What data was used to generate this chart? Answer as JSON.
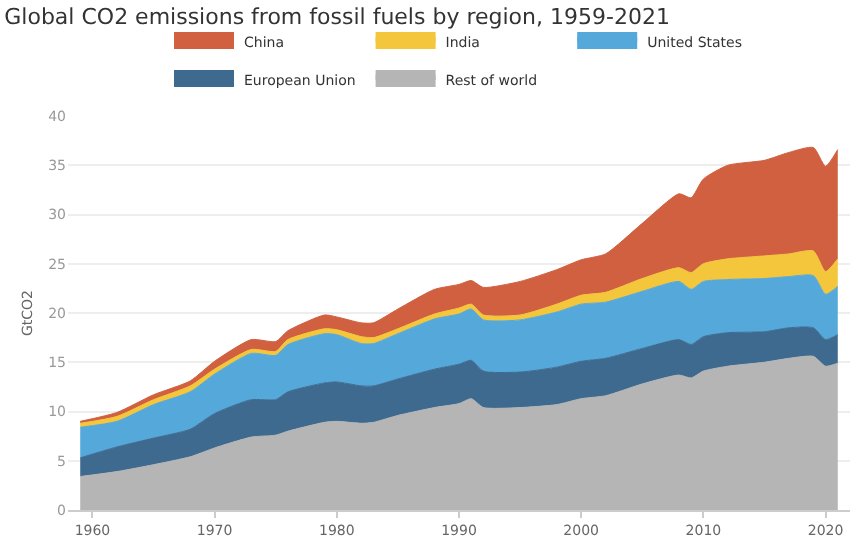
{
  "chart_data": {
    "type": "area",
    "stacked": true,
    "title": "Global CO2 emissions from fossil fuels by region, 1959-2021",
    "ylabel": "GtCO2",
    "x": [
      1959,
      1962,
      1965,
      1968,
      1970,
      1973,
      1975,
      1976,
      1979,
      1980,
      1982,
      1983,
      1985,
      1988,
      1990,
      1991,
      1992,
      1995,
      1998,
      2000,
      2002,
      2005,
      2008,
      2009,
      2010,
      2012,
      2015,
      2017,
      2019,
      2020,
      2021
    ],
    "series": [
      {
        "name": "Rest of world",
        "color": "#b5b5b5",
        "values": [
          3.4,
          3.9,
          4.6,
          5.4,
          6.3,
          7.4,
          7.6,
          8.0,
          8.9,
          9.0,
          8.8,
          8.9,
          9.6,
          10.4,
          10.8,
          11.3,
          10.4,
          10.4,
          10.7,
          11.3,
          11.6,
          12.8,
          13.7,
          13.4,
          14.1,
          14.6,
          15.0,
          15.4,
          15.6,
          14.6,
          14.9
        ]
      },
      {
        "name": "European Union",
        "color": "#3f6a8f",
        "values": [
          1.9,
          2.5,
          2.7,
          2.8,
          3.5,
          3.8,
          3.6,
          4.0,
          4.0,
          4.0,
          3.8,
          3.7,
          3.7,
          3.9,
          4.0,
          3.9,
          3.7,
          3.6,
          3.8,
          3.8,
          3.8,
          3.6,
          3.6,
          3.4,
          3.5,
          3.4,
          3.1,
          3.1,
          2.9,
          2.7,
          2.9
        ]
      },
      {
        "name": "United States",
        "color": "#55a8da",
        "values": [
          3.1,
          2.6,
          3.4,
          3.8,
          4.0,
          4.7,
          4.5,
          4.8,
          5.0,
          4.8,
          4.3,
          4.3,
          4.6,
          5.1,
          5.1,
          5.2,
          5.2,
          5.3,
          5.6,
          5.8,
          5.7,
          5.8,
          5.9,
          5.6,
          5.6,
          5.4,
          5.4,
          5.2,
          5.3,
          4.6,
          4.9
        ]
      },
      {
        "name": "India",
        "color": "#f3c63c",
        "values": [
          0.4,
          0.5,
          0.5,
          0.6,
          0.5,
          0.4,
          0.4,
          0.5,
          0.5,
          0.5,
          0.7,
          0.6,
          0.5,
          0.5,
          0.6,
          0.5,
          0.5,
          0.5,
          0.8,
          0.9,
          1.0,
          1.3,
          1.4,
          1.7,
          1.8,
          2.1,
          2.3,
          2.3,
          2.5,
          2.3,
          2.8
        ]
      },
      {
        "name": "China",
        "color": "#d0603f",
        "values": [
          0.2,
          0.4,
          0.5,
          0.5,
          0.8,
          1.0,
          1.0,
          0.9,
          1.4,
          1.3,
          1.4,
          1.5,
          2.0,
          2.5,
          2.4,
          2.4,
          2.8,
          3.4,
          3.5,
          3.6,
          3.9,
          5.6,
          7.5,
          7.6,
          8.6,
          9.5,
          9.7,
          10.3,
          10.5,
          10.7,
          11.1
        ]
      }
    ],
    "xlim": [
      1958,
      2022
    ],
    "xticks": [
      1960,
      1970,
      1980,
      1990,
      2000,
      2010,
      2020
    ],
    "ylim": [
      0,
      40
    ],
    "yticks": [
      0,
      5,
      10,
      15,
      20,
      25,
      30,
      35,
      40
    ],
    "grid": "y",
    "legend": "top"
  }
}
